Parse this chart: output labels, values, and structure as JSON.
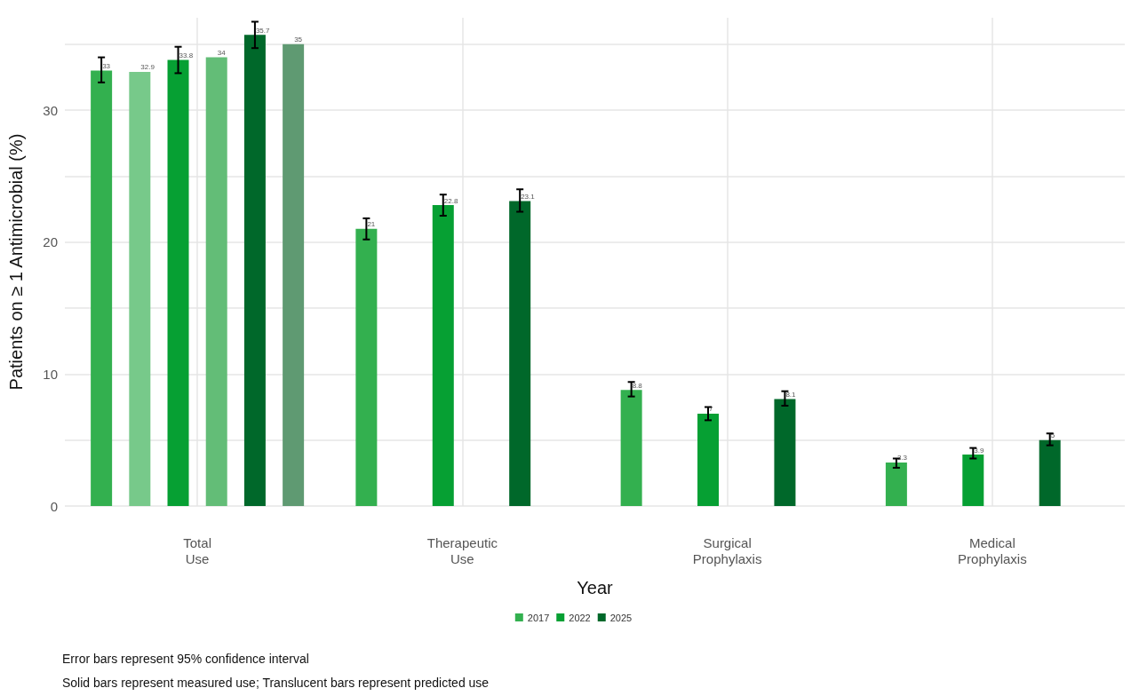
{
  "chart_data": {
    "type": "bar",
    "xlabel": "Year",
    "ylabel": "Patients on ≥ 1 Antimicrobial (%)",
    "categories": [
      "Total\nUse",
      "Therapeutic\nUse",
      "Surgical\nProphylaxis",
      "Medical\nProphylaxis"
    ],
    "series": [
      {
        "name": "2017",
        "color": "#33b04f",
        "values": [
          33,
          21,
          8.8,
          3.3
        ],
        "errors": [
          [
            32.1,
            34.0
          ],
          [
            20.2,
            21.8
          ],
          [
            8.3,
            9.4
          ],
          [
            2.9,
            3.6
          ]
        ]
      },
      {
        "color": "#77c98a",
        "values": [
          32.9,
          null,
          null,
          null
        ]
      },
      {
        "name": "2022",
        "color": "#06a033",
        "values": [
          33.8,
          22.8,
          7,
          3.9
        ],
        "errors": [
          [
            32.8,
            34.8
          ],
          [
            22.0,
            23.6
          ],
          [
            6.5,
            7.5
          ],
          [
            3.6,
            4.4
          ]
        ]
      },
      {
        "color": "#63bd77",
        "values": [
          34,
          null,
          null,
          null
        ]
      },
      {
        "name": "2025",
        "color": "#00682a",
        "values": [
          35.7,
          23.1,
          8.1,
          5
        ],
        "errors": [
          [
            34.7,
            36.7
          ],
          [
            22.3,
            24.0
          ],
          [
            7.6,
            8.7
          ],
          [
            4.6,
            5.5
          ]
        ]
      },
      {
        "color": "#5f9a72",
        "values": [
          35,
          null,
          null,
          null
        ]
      }
    ],
    "ylim": [
      0,
      37
    ],
    "yticks": [
      0,
      {
        "value": 5,
        "label": null
      },
      10,
      {
        "value": 15,
        "label": null
      },
      20,
      {
        "value": 25,
        "label": null
      },
      30,
      {
        "value": 35,
        "label": null
      }
    ],
    "grid": true,
    "legend": "bottom",
    "data_labels": true,
    "annotations": [
      "Error bars represent 95% confidence interval",
      "Solid bars represent measured use; Translucent bars represent predicted use"
    ]
  }
}
